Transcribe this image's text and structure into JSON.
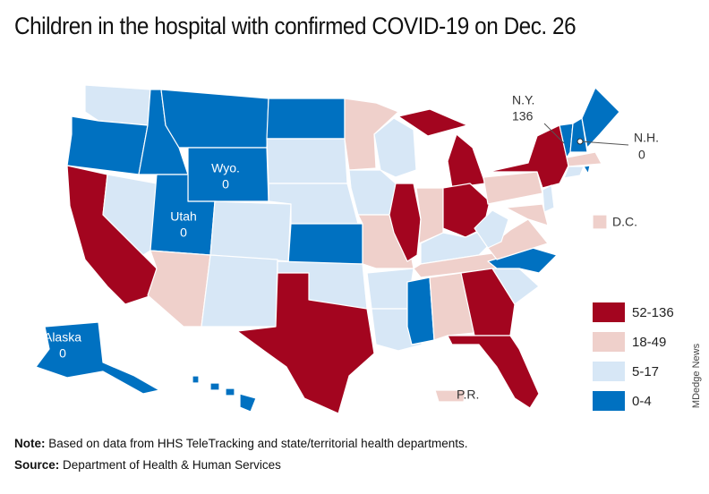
{
  "title": "Children in the hospital with confirmed COVID-19 on Dec. 26",
  "legend": [
    {
      "label": "52-136",
      "color": "#a3051f"
    },
    {
      "label": "18-49",
      "color": "#efd0cb"
    },
    {
      "label": "5-17",
      "color": "#d7e7f6"
    },
    {
      "label": "0-4",
      "color": "#0071c1"
    }
  ],
  "annotations": [
    {
      "label": "N.Y.",
      "value": 136
    },
    {
      "label": "N.H.",
      "value": 0
    },
    {
      "label": "Wyo.",
      "value": 0
    },
    {
      "label": "Utah",
      "value": 0
    },
    {
      "label": "Alaska",
      "value": 0
    },
    {
      "label": "D.C."
    },
    {
      "label": "P.R."
    }
  ],
  "credit": "MDedge News",
  "note": {
    "label": "Note:",
    "text": "Based on data from HHS TeleTracking and state/territorial health departments."
  },
  "source": {
    "label": "Source:",
    "text": "Department of Health & Human Services"
  }
}
